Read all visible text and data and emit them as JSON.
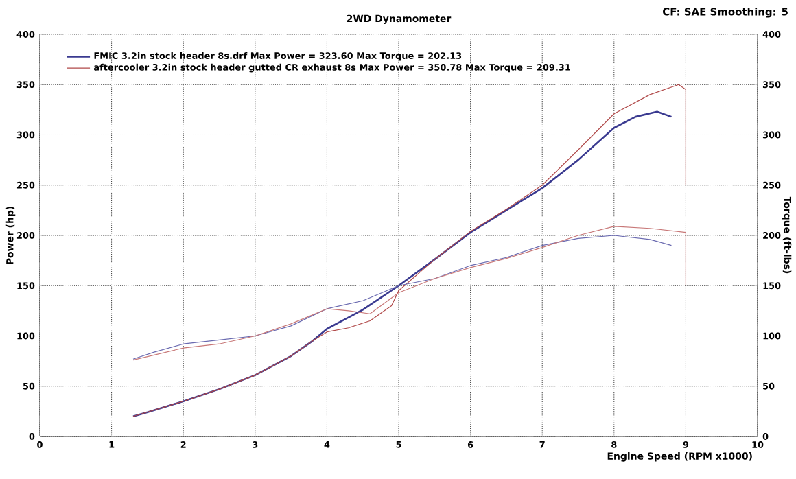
{
  "chart_data": {
    "type": "line",
    "title": "2WD Dynamometer",
    "xlabel": "Engine Speed (RPM x1000)",
    "ylabel": "Power (hp)",
    "y2label": "Torque (ft-lbs)",
    "annotations": [
      "CF: SAE  Smoothing: 5"
    ],
    "xlim": [
      0,
      10
    ],
    "xticks": [
      0,
      1,
      2,
      3,
      4,
      5,
      6,
      7,
      8,
      9,
      10
    ],
    "ylim": [
      0,
      400
    ],
    "yticks": [
      0,
      50,
      100,
      150,
      200,
      250,
      300,
      350,
      400
    ],
    "y2lim": [
      0,
      400
    ],
    "y2ticks": [
      0,
      50,
      100,
      150,
      200,
      250,
      300,
      350,
      400
    ],
    "grid": true,
    "legend": "top left",
    "series": [
      {
        "name": "FMIC 3.2in stock header 8s.drf Max Power = 323.60    Max Torque = 202.13",
        "color": "#3a3a90",
        "x": [
          1.3,
          1.5,
          2,
          2.5,
          3,
          3.5,
          3.8,
          4,
          4.5,
          5,
          5.5,
          6,
          6.5,
          7,
          7.5,
          8,
          8.3,
          8.6,
          8.8
        ],
        "values": [
          20,
          24,
          35,
          47,
          61,
          80,
          95,
          107,
          126,
          150,
          176,
          203,
          225,
          247,
          275,
          307,
          318,
          323,
          318
        ]
      },
      {
        "name": "aftercooler 3.2in stock header gutted CR exhaust 8s Max Power = 350.78    Max Torque = 209.31",
        "color": "#b04848",
        "x": [
          1.3,
          2,
          2.5,
          3,
          3.5,
          3.8,
          4,
          4.3,
          4.6,
          4.9,
          5,
          5.5,
          6,
          6.5,
          7,
          7.5,
          8,
          8.5,
          8.9,
          9.0,
          9.0
        ],
        "values": [
          20,
          35,
          47,
          61,
          80,
          95,
          104,
          108,
          115,
          130,
          145,
          176,
          204,
          226,
          250,
          285,
          321,
          340,
          350,
          345,
          250
        ]
      },
      {
        "color": "#6a6ab0",
        "axis": "y2",
        "x": [
          1.3,
          1.6,
          2,
          2.5,
          3,
          3.5,
          4,
          4.5,
          5,
          5.5,
          6,
          6.5,
          7,
          7.5,
          8,
          8.5,
          8.8
        ],
        "values": [
          77,
          84,
          92,
          96,
          100,
          110,
          127,
          135,
          150,
          157,
          170,
          178,
          190,
          197,
          200,
          196,
          190
        ]
      },
      {
        "color": "#c87878",
        "axis": "y2",
        "x": [
          1.3,
          2,
          2.5,
          3,
          3.5,
          4,
          4.3,
          4.6,
          5,
          5.5,
          6,
          6.5,
          7,
          7.5,
          8,
          8.5,
          9.0,
          9.0
        ],
        "values": [
          76,
          88,
          92,
          100,
          112,
          127,
          125,
          122,
          143,
          157,
          168,
          177,
          188,
          200,
          209,
          207,
          203,
          150
        ]
      }
    ]
  }
}
